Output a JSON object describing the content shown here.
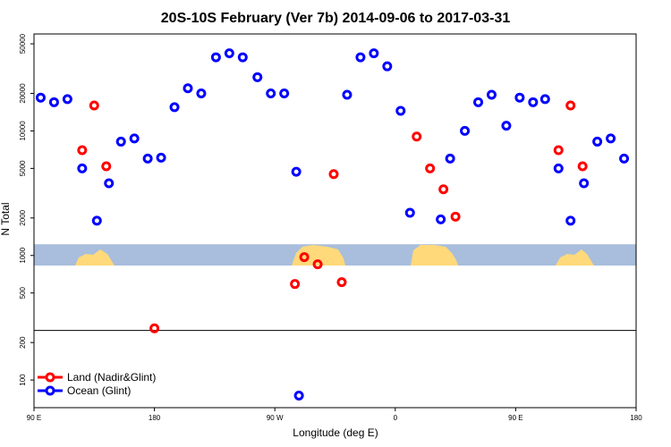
{
  "chart_data": {
    "type": "scatter",
    "title": "20S-10S February (Ver 7b)   2014-09-06 to 2017-03-31",
    "xlabel": "Longitude (deg E)",
    "ylabel": "N Total",
    "xlim": [
      90,
      540
    ],
    "ylim": [
      60,
      60000
    ],
    "log_y": true,
    "x_ticks": [
      {
        "value": 90,
        "label": "90 E"
      },
      {
        "value": 180,
        "label": "180"
      },
      {
        "value": 270,
        "label": "90 W"
      },
      {
        "value": 360,
        "label": "0"
      },
      {
        "value": 450,
        "label": "90 E"
      },
      {
        "value": 540,
        "label": "180"
      }
    ],
    "y_ticks": [
      {
        "value": 100,
        "label": "100"
      },
      {
        "value": 200,
        "label": "200"
      },
      {
        "value": 500,
        "label": "500"
      },
      {
        "value": 1000,
        "label": "1000"
      },
      {
        "value": 2000,
        "label": "2000"
      },
      {
        "value": 5000,
        "label": "5000"
      },
      {
        "value": 10000,
        "label": "10000"
      },
      {
        "value": 20000,
        "label": "20000"
      },
      {
        "value": 50000,
        "label": "50000"
      }
    ],
    "reference_line_y": 250,
    "map_band": {
      "y_low": 830,
      "y_high": 1230,
      "ocean_color": "#a8bedc",
      "land_color": "#ffd97a"
    },
    "legend": {
      "position": "bottom-left"
    },
    "series": [
      {
        "name": "Land (Nadir&Glint)",
        "color": "#ff0000",
        "points": [
          [
            126,
            7000
          ],
          [
            135,
            16000
          ],
          [
            144,
            5200
          ],
          [
            180,
            260
          ],
          [
            285,
            590
          ],
          [
            292,
            970
          ],
          [
            302,
            850
          ],
          [
            314,
            4500
          ],
          [
            320,
            610
          ],
          [
            376,
            9000
          ],
          [
            386,
            5000
          ],
          [
            396,
            3400
          ],
          [
            405,
            2050
          ],
          [
            482,
            7000
          ],
          [
            491,
            16000
          ],
          [
            500,
            5200
          ]
        ]
      },
      {
        "name": "Ocean (Glint)",
        "color": "#0000ff",
        "points": [
          [
            95,
            18500
          ],
          [
            105,
            17000
          ],
          [
            115,
            18000
          ],
          [
            126,
            5000
          ],
          [
            137,
            1900
          ],
          [
            146,
            3800
          ],
          [
            155,
            8200
          ],
          [
            165,
            8700
          ],
          [
            175,
            6000
          ],
          [
            185,
            6100
          ],
          [
            195,
            15500
          ],
          [
            205,
            22000
          ],
          [
            215,
            20000
          ],
          [
            226,
            39000
          ],
          [
            236,
            42000
          ],
          [
            246,
            39000
          ],
          [
            257,
            27000
          ],
          [
            267,
            20000
          ],
          [
            277,
            20000
          ],
          [
            286,
            4700
          ],
          [
            288,
            75
          ],
          [
            324,
            19500
          ],
          [
            334,
            39000
          ],
          [
            344,
            42000
          ],
          [
            354,
            33000
          ],
          [
            364,
            14500
          ],
          [
            371,
            2200
          ],
          [
            394,
            1950
          ],
          [
            401,
            6000
          ],
          [
            412,
            10000
          ],
          [
            422,
            17000
          ],
          [
            432,
            19500
          ],
          [
            443,
            11000
          ],
          [
            453,
            18500
          ],
          [
            463,
            17000
          ],
          [
            472,
            18000
          ],
          [
            482,
            5000
          ],
          [
            491,
            1900
          ],
          [
            501,
            3800
          ],
          [
            511,
            8200
          ],
          [
            521,
            8700
          ],
          [
            531,
            6000
          ]
        ]
      }
    ]
  }
}
